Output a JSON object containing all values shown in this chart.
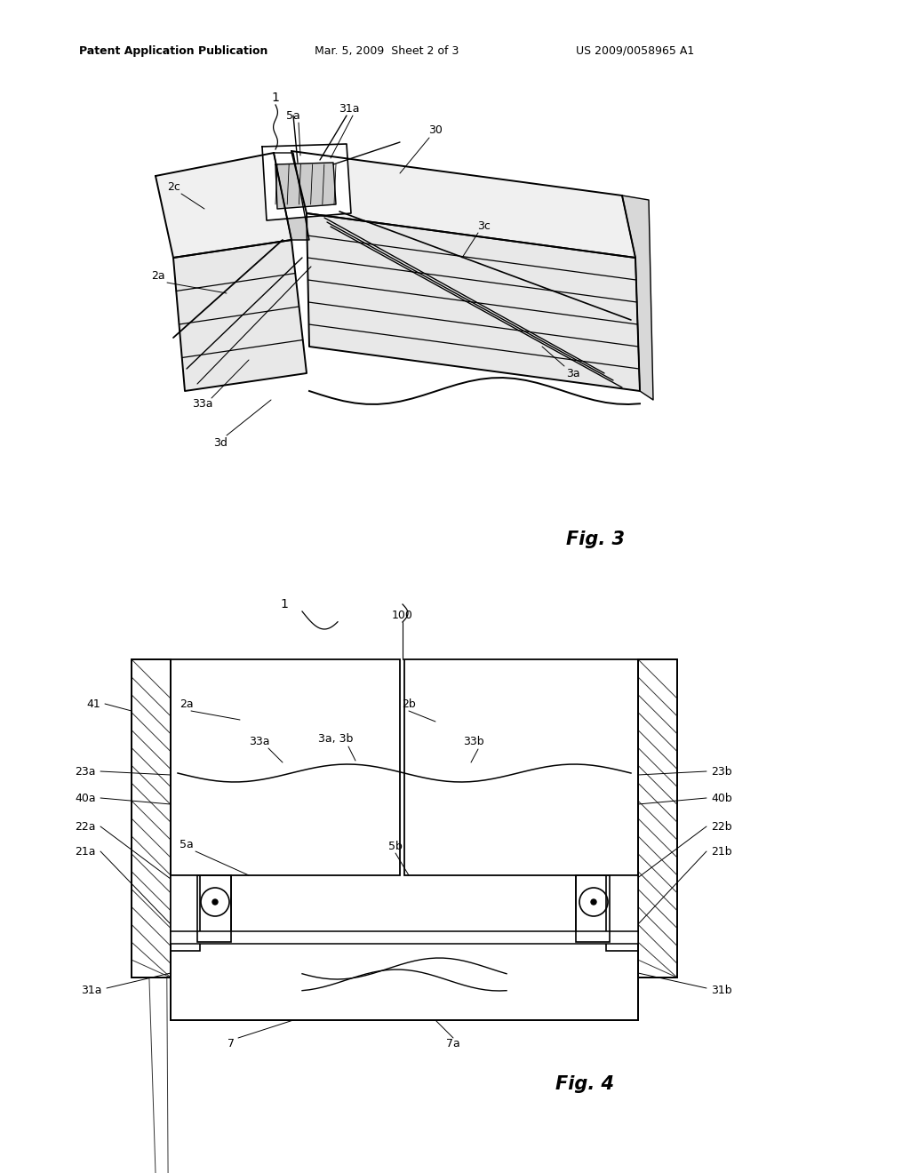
{
  "bg_color": "#ffffff",
  "header_left": "Patent Application Publication",
  "header_mid": "Mar. 5, 2009  Sheet 2 of 3",
  "header_right": "US 2009/0058965 A1",
  "fig3_label": "Fig. 3",
  "fig4_label": "Fig. 4"
}
